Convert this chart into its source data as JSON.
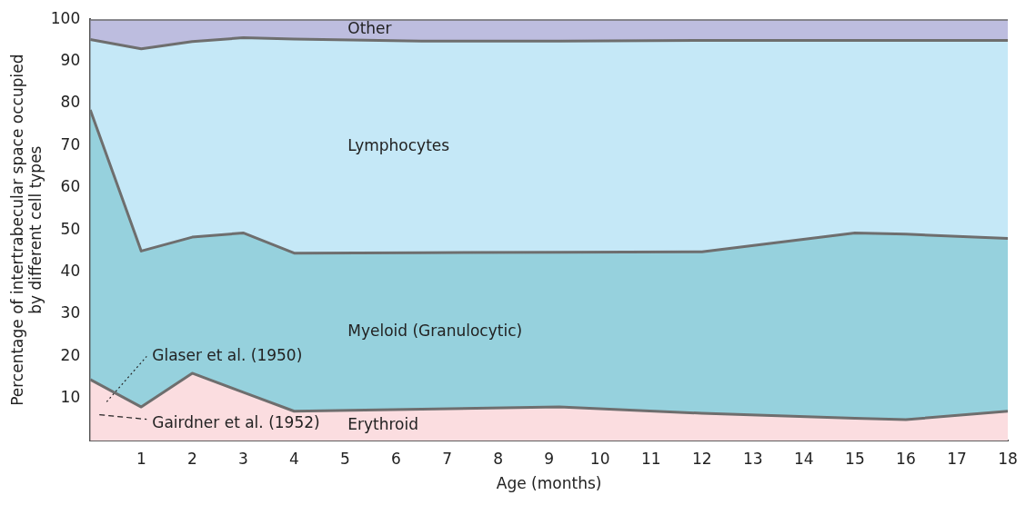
{
  "chart_data": {
    "type": "area",
    "stacked": true,
    "xlabel": "Age (months)",
    "ylabel": "Percentage of intertrabecular space occupied by different cell types",
    "x": [
      0,
      1,
      2,
      3,
      4,
      6.5,
      9.2,
      12,
      15,
      16,
      18
    ],
    "series": [
      {
        "name": "Erythroid",
        "color": "#fbdde0",
        "values": [
          14.5,
          8,
          16,
          11.5,
          7,
          7.5,
          8,
          6.5,
          5.3,
          5,
          7
        ]
      },
      {
        "name": "Myeloid (Granulocytic)",
        "color": "#96d1dd",
        "values": [
          64,
          37,
          32.3,
          37.8,
          37.5,
          37.1,
          36.7,
          38.3,
          44,
          44,
          41
        ]
      },
      {
        "name": "Lymphocytes",
        "color": "#c5e8f7",
        "values": [
          16.7,
          48,
          46.4,
          46.3,
          50.8,
          50.2,
          50.1,
          50.2,
          45.7,
          46,
          47
        ]
      },
      {
        "name": "Other",
        "color": "#bdbddf",
        "values": [
          4.8,
          7,
          5.3,
          4.4,
          4.7,
          5.2,
          5.2,
          5,
          5,
          5,
          5
        ]
      }
    ],
    "xlim": [
      0,
      18
    ],
    "xticks": [
      1,
      2,
      3,
      4,
      5,
      6,
      7,
      8,
      9,
      10,
      11,
      12,
      13,
      14,
      15,
      16,
      17,
      18
    ],
    "ylim": [
      0,
      100
    ],
    "yticks": [
      10,
      20,
      30,
      40,
      50,
      60,
      70,
      80,
      90,
      100
    ],
    "grid": false,
    "legend": false,
    "annotations": [
      "Glaser et al. (1950)",
      "Gairdner et al. (1952)"
    ]
  }
}
